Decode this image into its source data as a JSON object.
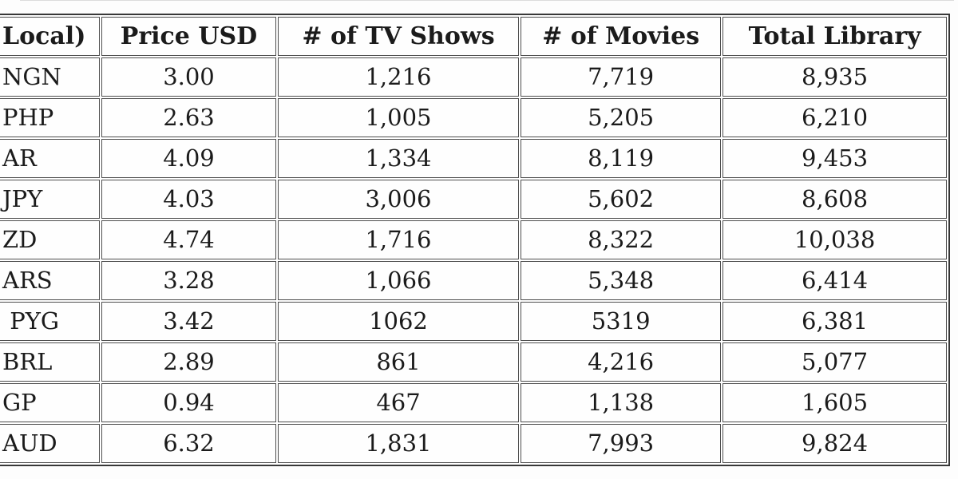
{
  "colors": {
    "cell_border": "#4e4e4e",
    "table_border": "#383838",
    "text": "#1b1b1b",
    "background": "#fdfdfd"
  },
  "chart_data": {
    "type": "table",
    "columns": [
      "Local)",
      "Price USD",
      "# of TV Shows",
      "# of Movies",
      "Total Library"
    ],
    "rows": [
      [
        "NGN",
        "3.00",
        "1,216",
        "7,719",
        "8,935"
      ],
      [
        "PHP",
        "2.63",
        "1,005",
        "5,205",
        "6,210"
      ],
      [
        "AR",
        "4.09",
        "1,334",
        "8,119",
        "9,453"
      ],
      [
        "JPY",
        "4.03",
        "3,006",
        "5,602",
        "8,608"
      ],
      [
        "ZD",
        "4.74",
        "1,716",
        "8,322",
        "10,038"
      ],
      [
        "ARS",
        "3.28",
        "1,066",
        "5,348",
        "6,414"
      ],
      [
        " PYG",
        "3.42",
        "1062",
        "5319",
        "6,381"
      ],
      [
        "BRL",
        "2.89",
        "861",
        "4,216",
        "5,077"
      ],
      [
        "GP",
        "0.94",
        "467",
        "1,138",
        "1,605"
      ],
      [
        "AUD",
        "6.32",
        "1,831",
        "7,993",
        "9,824"
      ]
    ]
  }
}
